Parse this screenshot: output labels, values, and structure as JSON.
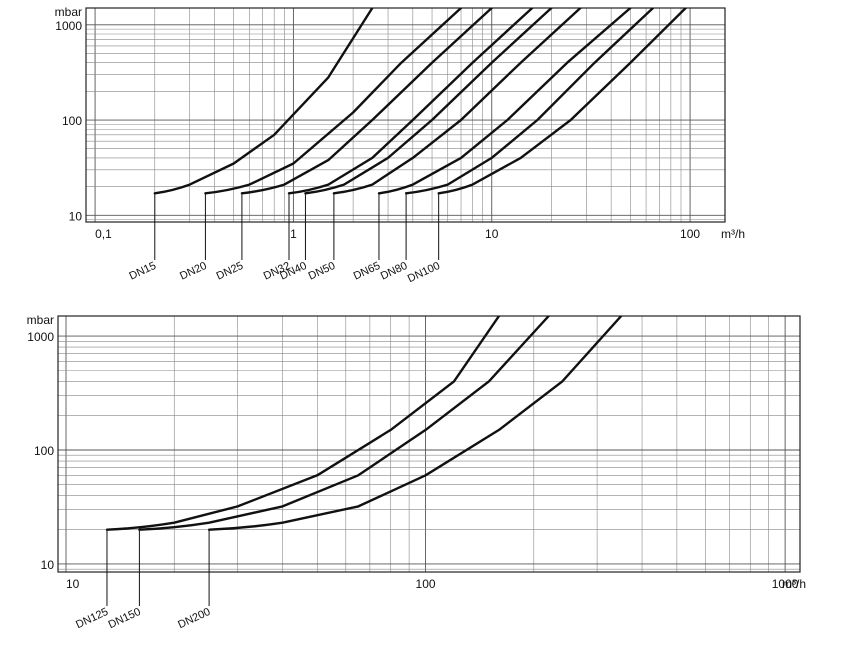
{
  "chart_data": [
    {
      "type": "line",
      "x_scale": "log",
      "y_scale": "log",
      "xlim": [
        0.09,
        150
      ],
      "ylim": [
        8.5,
        1500
      ],
      "x_ticks": [
        "0,1",
        "1",
        "10",
        "100"
      ],
      "x_unit": "m³/h",
      "y_ticks": [
        "10",
        "100",
        "1000"
      ],
      "y_unit": "mbar",
      "series": [
        {
          "name": "DN15",
          "points": [
            [
              0.2,
              17
            ],
            [
              0.3,
              21
            ],
            [
              0.5,
              35
            ],
            [
              0.8,
              70
            ],
            [
              1.5,
              280
            ],
            [
              2.5,
              1500
            ]
          ]
        },
        {
          "name": "DN20",
          "points": [
            [
              0.36,
              17
            ],
            [
              0.6,
              21
            ],
            [
              1.0,
              35
            ],
            [
              2.0,
              120
            ],
            [
              3.5,
              400
            ],
            [
              7,
              1500
            ]
          ]
        },
        {
          "name": "DN25",
          "points": [
            [
              0.55,
              17
            ],
            [
              0.9,
              21
            ],
            [
              1.5,
              38
            ],
            [
              2.5,
              100
            ],
            [
              5,
              400
            ],
            [
              10,
              1500
            ]
          ]
        },
        {
          "name": "DN32",
          "points": [
            [
              0.95,
              17
            ],
            [
              1.5,
              21
            ],
            [
              2.5,
              40
            ],
            [
              4,
              100
            ],
            [
              8,
              400
            ],
            [
              16,
              1500
            ]
          ]
        },
        {
          "name": "DN40",
          "points": [
            [
              1.15,
              17
            ],
            [
              1.8,
              21
            ],
            [
              3,
              40
            ],
            [
              5,
              100
            ],
            [
              10,
              400
            ],
            [
              20,
              1500
            ]
          ]
        },
        {
          "name": "DN50",
          "points": [
            [
              1.6,
              17
            ],
            [
              2.5,
              21
            ],
            [
              4,
              40
            ],
            [
              7,
              100
            ],
            [
              14,
              400
            ],
            [
              28,
              1500
            ]
          ]
        },
        {
          "name": "DN65",
          "points": [
            [
              2.7,
              17
            ],
            [
              4,
              21
            ],
            [
              7,
              40
            ],
            [
              12,
              100
            ],
            [
              24,
              400
            ],
            [
              50,
              1500
            ]
          ]
        },
        {
          "name": "DN80",
          "points": [
            [
              3.7,
              17
            ],
            [
              6,
              21
            ],
            [
              10,
              40
            ],
            [
              17,
              100
            ],
            [
              33,
              400
            ],
            [
              65,
              1500
            ]
          ]
        },
        {
          "name": "DN100",
          "points": [
            [
              5.4,
              17
            ],
            [
              8,
              21
            ],
            [
              14,
              40
            ],
            [
              25,
              100
            ],
            [
              50,
              400
            ],
            [
              95,
              1500
            ]
          ]
        }
      ]
    },
    {
      "type": "line",
      "x_scale": "log",
      "y_scale": "log",
      "xlim": [
        9.5,
        1100
      ],
      "ylim": [
        8.5,
        1500
      ],
      "x_ticks": [
        "10",
        "100",
        "1000"
      ],
      "x_unit": "m³/h",
      "y_ticks": [
        "10",
        "100",
        "1000"
      ],
      "y_unit": "mbar",
      "series": [
        {
          "name": "DN125",
          "points": [
            [
              13,
              20
            ],
            [
              20,
              23
            ],
            [
              30,
              32
            ],
            [
              50,
              60
            ],
            [
              80,
              150
            ],
            [
              120,
              400
            ],
            [
              160,
              1500
            ]
          ]
        },
        {
          "name": "DN150",
          "points": [
            [
              16,
              20
            ],
            [
              25,
              23
            ],
            [
              40,
              32
            ],
            [
              65,
              60
            ],
            [
              100,
              150
            ],
            [
              150,
              400
            ],
            [
              220,
              1500
            ]
          ]
        },
        {
          "name": "DN200",
          "points": [
            [
              25,
              20
            ],
            [
              40,
              23
            ],
            [
              65,
              32
            ],
            [
              100,
              60
            ],
            [
              160,
              150
            ],
            [
              240,
              400
            ],
            [
              350,
              1500
            ]
          ]
        }
      ]
    }
  ]
}
